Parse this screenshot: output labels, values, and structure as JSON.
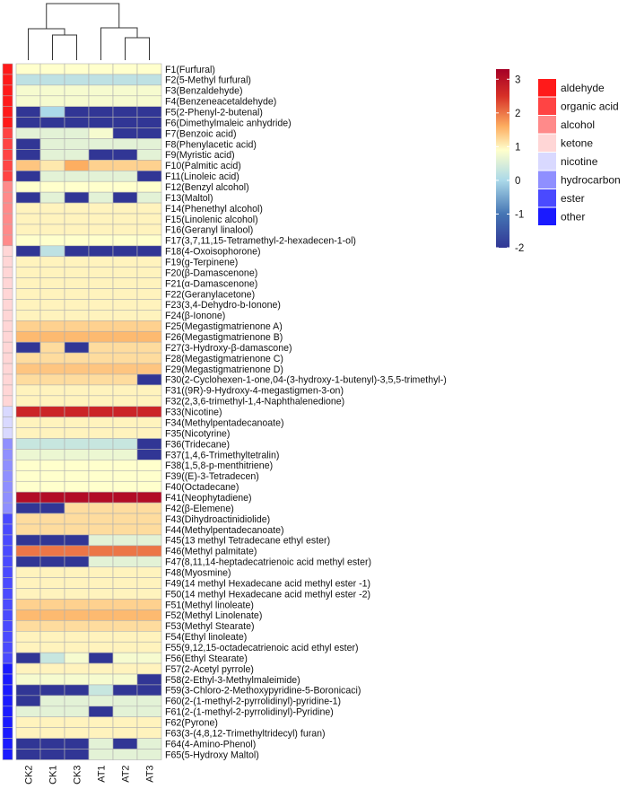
{
  "chart_data": {
    "type": "heatmap",
    "title": "",
    "columns": [
      "CK2",
      "CK1",
      "CK3",
      "AT1",
      "AT2",
      "AT3"
    ],
    "rows": [
      "F1(Furfural)",
      "F2(5-Methyl furfural)",
      "F3(Benzaldehyde)",
      "F4(Benzeneacetaldehyde)",
      "F5(2-Phenyl-2-butenal)",
      "F6(Dimethylmaleic anhydride)",
      "F7(Benzoic acid)",
      "F8(Phenylacetic acid)",
      "F9(Myristic acid)",
      "F10(Palmitic acid)",
      "F11(Linoleic acid)",
      "F12(Benzyl alcohol)",
      "F13(Maltol)",
      "F14(Phenethyl alcohol)",
      "F15(Linolenic alcohol)",
      "F16(Geranyl linalool)",
      "F17(3,7,11,15-Tetramethyl-2-hexadecen-1-ol)",
      "F18(4-Oxoisophorone)",
      "F19(g-Terpinene)",
      "F20(β-Damascenone)",
      "F21(α-Damascenone)",
      "F22(Geranylacetone)",
      "F23(3,4-Dehydro-b-Ionone)",
      "F24(β-Ionone)",
      "F25(Megastigmatrienone A)",
      "F26(Megastigmatrienone B)",
      "F27(3-Hydroxy-β-damascone)",
      "F28(Megastigmatrienone C)",
      "F29(Megastigmatrienone D)",
      "F30(2-Cyclohexen-1-one,04-(3-hydroxy-1-butenyl)-3,5,5-trimethyl-)",
      "F31((9R)-9-Hydroxy-4-megastigmen-3-on)",
      "F32(2,3,6-trimethyl-1,4-Naphthalenedione)",
      "F33(Nicotine)",
      "F34(Methylpentadecanoate)",
      "F35(Nicotyrine)",
      "F36(Tridecane)",
      "F37(1,4,6-Trimethyltetralin)",
      "F38(1,5,8-p-menthitriene)",
      "F39((E)-3-Tetradecen)",
      "F40(Octadecane)",
      "F41(Neophytadiene)",
      "F42(β-Elemene)",
      "F43(Dihydroactinidiolide)",
      "F44(Methylpentadecanoate)",
      "F45(13 methyl Tetradecane ethyl ester)",
      "F46(Methyl palmitate)",
      "F47(8,11,14-heptadecatrienoic acid methyl ester)",
      "F48(Myosmine)",
      "F49(14 methyl Hexadecane acid methyl ester -1)",
      "F50(14 methyl Hexadecane acid methyl ester -2)",
      "F51(Methyl linoleate)",
      "F52(Methyl Linolenate)",
      "F53(Methyl Stearate)",
      "F54(Ethyl linoleate)",
      "F55(9,12,15-octadecatrienoic acid ethyl ester)",
      "F56(Ethyl Stearate)",
      "F57(2-Acetyl pyrrole)",
      "F58(2-Ethyl-3-Methylmaleimide)",
      "F59(3-Chloro-2-Methoxypyridine-5-Boronicaci)",
      "F60(2-(1-methyl-2-pyrrolidinyl)-pyridine-1)",
      "F61(2-(1-methyl-2-pyrrolidinyl)-Pyridine)",
      "F62(Pyrone)",
      "F63(3-(4,8,12-Trimethyltridecyl) furan)",
      "F64(4-Amino-Phenol)",
      "F65(5-Hydroxy Maltol)"
    ],
    "values": [
      [
        0.9,
        0.9,
        0.9,
        0.9,
        0.9,
        0.9
      ],
      [
        0.2,
        0.2,
        0.2,
        0.2,
        0.2,
        0.2
      ],
      [
        0.8,
        0.8,
        0.8,
        0.8,
        0.8,
        0.8
      ],
      [
        0.8,
        0.8,
        0.8,
        0.8,
        0.8,
        0.8
      ],
      [
        -2.0,
        0.0,
        -2.0,
        -2.0,
        -2.0,
        -2.0
      ],
      [
        -2.0,
        -2.0,
        -2.0,
        -2.0,
        -2.0,
        -2.0
      ],
      [
        0.6,
        0.6,
        0.6,
        0.8,
        -2.0,
        -2.0
      ],
      [
        -2.0,
        0.6,
        0.6,
        0.6,
        0.6,
        0.6
      ],
      [
        -2.0,
        0.6,
        0.6,
        -2.0,
        -2.0,
        0.6
      ],
      [
        1.4,
        1.1,
        1.6,
        1.3,
        1.3,
        1.3
      ],
      [
        -2.0,
        0.6,
        0.6,
        0.6,
        0.6,
        -2.0
      ],
      [
        0.9,
        0.9,
        0.9,
        0.9,
        0.9,
        0.9
      ],
      [
        -2.0,
        0.6,
        -2.0,
        0.6,
        -2.0,
        0.6
      ],
      [
        1.0,
        1.0,
        1.0,
        1.0,
        1.0,
        1.0
      ],
      [
        1.0,
        1.0,
        1.0,
        1.0,
        1.0,
        1.0
      ],
      [
        1.0,
        1.0,
        1.0,
        1.0,
        1.0,
        1.0
      ],
      [
        0.9,
        0.9,
        0.9,
        0.9,
        0.9,
        0.9
      ],
      [
        -2.0,
        0.2,
        -2.0,
        -2.0,
        -2.0,
        -2.0
      ],
      [
        1.0,
        1.0,
        1.0,
        1.0,
        1.0,
        1.0
      ],
      [
        1.0,
        1.0,
        1.0,
        1.0,
        1.0,
        1.0
      ],
      [
        1.0,
        1.0,
        1.0,
        1.0,
        1.0,
        1.0
      ],
      [
        1.0,
        1.0,
        1.0,
        1.0,
        1.0,
        1.0
      ],
      [
        1.0,
        1.0,
        1.0,
        1.0,
        1.0,
        1.0
      ],
      [
        1.0,
        1.0,
        1.0,
        1.0,
        1.0,
        1.0
      ],
      [
        1.3,
        1.3,
        1.3,
        1.3,
        1.3,
        1.3
      ],
      [
        1.5,
        1.5,
        1.5,
        1.5,
        1.5,
        1.5
      ],
      [
        -2.0,
        1.2,
        -2.0,
        1.2,
        1.2,
        1.2
      ],
      [
        1.2,
        1.2,
        1.2,
        1.2,
        1.2,
        1.2
      ],
      [
        1.4,
        1.4,
        1.4,
        1.4,
        1.4,
        1.4
      ],
      [
        1.2,
        1.2,
        1.2,
        1.2,
        1.2,
        -2.0
      ],
      [
        1.0,
        1.0,
        1.0,
        1.0,
        1.0,
        1.0
      ],
      [
        1.0,
        1.0,
        1.0,
        1.0,
        1.0,
        1.0
      ],
      [
        2.7,
        2.7,
        2.7,
        2.7,
        2.7,
        2.7
      ],
      [
        1.0,
        1.0,
        1.0,
        1.0,
        1.0,
        1.0
      ],
      [
        1.0,
        1.0,
        1.0,
        1.0,
        1.0,
        1.0
      ],
      [
        0.3,
        0.3,
        0.3,
        0.3,
        0.3,
        -2.0
      ],
      [
        0.7,
        0.7,
        0.7,
        0.7,
        0.7,
        -2.0
      ],
      [
        0.9,
        0.9,
        0.9,
        0.9,
        0.9,
        0.9
      ],
      [
        0.9,
        0.9,
        0.9,
        0.9,
        0.9,
        0.9
      ],
      [
        0.9,
        0.9,
        0.9,
        0.9,
        0.9,
        0.9
      ],
      [
        3.1,
        3.1,
        3.1,
        3.1,
        3.1,
        3.1
      ],
      [
        -2.0,
        -2.0,
        1.2,
        1.2,
        1.2,
        1.2
      ],
      [
        1.2,
        1.2,
        1.2,
        1.2,
        1.2,
        1.2
      ],
      [
        1.2,
        1.2,
        1.2,
        1.2,
        1.2,
        1.2
      ],
      [
        -2.0,
        -2.0,
        -2.0,
        0.6,
        0.6,
        0.6
      ],
      [
        2.0,
        2.0,
        2.0,
        2.0,
        2.0,
        2.0
      ],
      [
        -2.0,
        -2.0,
        -2.0,
        0.6,
        0.6,
        0.6
      ],
      [
        1.0,
        1.0,
        1.0,
        1.0,
        1.0,
        1.0
      ],
      [
        1.0,
        1.0,
        1.0,
        1.0,
        1.0,
        1.0
      ],
      [
        1.0,
        1.0,
        1.0,
        1.0,
        1.0,
        1.0
      ],
      [
        1.3,
        1.3,
        1.3,
        1.3,
        1.3,
        1.3
      ],
      [
        1.5,
        1.5,
        1.5,
        1.5,
        1.5,
        1.5
      ],
      [
        1.2,
        1.2,
        1.2,
        1.2,
        1.2,
        1.2
      ],
      [
        1.0,
        1.0,
        1.0,
        1.0,
        1.0,
        1.0
      ],
      [
        1.0,
        1.0,
        1.0,
        1.0,
        1.0,
        1.0
      ],
      [
        -2.0,
        0.3,
        0.8,
        -2.0,
        0.8,
        0.8
      ],
      [
        1.0,
        1.0,
        1.0,
        1.0,
        1.0,
        1.0
      ],
      [
        0.8,
        0.8,
        0.8,
        0.8,
        0.8,
        -2.0
      ],
      [
        -2.0,
        -2.0,
        -2.0,
        0.3,
        -2.0,
        -2.0
      ],
      [
        -2.0,
        0.6,
        0.6,
        0.6,
        0.6,
        0.6
      ],
      [
        0.6,
        0.6,
        0.6,
        -2.0,
        0.6,
        0.6
      ],
      [
        1.0,
        1.0,
        1.0,
        1.0,
        1.0,
        1.0
      ],
      [
        1.0,
        1.0,
        1.0,
        1.0,
        1.0,
        1.0
      ],
      [
        -2.0,
        -2.0,
        -2.0,
        0.6,
        -2.0,
        0.6
      ],
      [
        -2.0,
        -2.0,
        -2.0,
        0.6,
        0.6,
        0.6
      ]
    ],
    "row_groups": [
      "aldehyde",
      "aldehyde",
      "aldehyde",
      "aldehyde",
      "aldehyde",
      "aldehyde",
      "organic acid",
      "organic acid",
      "organic acid",
      "organic acid",
      "organic acid",
      "alcohol",
      "alcohol",
      "alcohol",
      "alcohol",
      "alcohol",
      "alcohol",
      "ketone",
      "ketone",
      "ketone",
      "ketone",
      "ketone",
      "ketone",
      "ketone",
      "ketone",
      "ketone",
      "ketone",
      "ketone",
      "ketone",
      "ketone",
      "ketone",
      "ketone",
      "nicotine",
      "nicotine",
      "nicotine",
      "hydrocarbon",
      "hydrocarbon",
      "hydrocarbon",
      "hydrocarbon",
      "hydrocarbon",
      "hydrocarbon",
      "hydrocarbon",
      "ester",
      "ester",
      "ester",
      "ester",
      "ester",
      "ester",
      "ester",
      "ester",
      "ester",
      "ester",
      "ester",
      "ester",
      "ester",
      "ester",
      "other",
      "other",
      "other",
      "other",
      "other",
      "other",
      "other",
      "other",
      "other"
    ],
    "colorbar": {
      "min": -2,
      "max": 3.3,
      "ticks": [
        "3",
        "2",
        "1",
        "0",
        "-1",
        "-2"
      ],
      "tick_values": [
        3,
        2,
        1,
        0,
        -1,
        -2
      ],
      "stops": [
        {
          "value": -2.0,
          "color": "#313695"
        },
        {
          "value": -1.0,
          "color": "#4575b4"
        },
        {
          "value": 0.0,
          "color": "#abd9e9"
        },
        {
          "value": 0.9,
          "color": "#ffffcc"
        },
        {
          "value": 1.6,
          "color": "#fdae61"
        },
        {
          "value": 2.5,
          "color": "#d73027"
        },
        {
          "value": 3.3,
          "color": "#a50026"
        }
      ]
    },
    "legend": [
      {
        "label": "aldehyde",
        "color": "#ff1a1a"
      },
      {
        "label": "organic acid",
        "color": "#ff4444"
      },
      {
        "label": "alcohol",
        "color": "#ff8a8a"
      },
      {
        "label": "ketone",
        "color": "#ffd6d6"
      },
      {
        "label": "nicotine",
        "color": "#d9d9ff"
      },
      {
        "label": "hydrocarbon",
        "color": "#8f8fff"
      },
      {
        "label": "ester",
        "color": "#4a4aff"
      },
      {
        "label": "other",
        "color": "#1a1aff"
      }
    ],
    "grid_color": "#b0b0b0"
  }
}
